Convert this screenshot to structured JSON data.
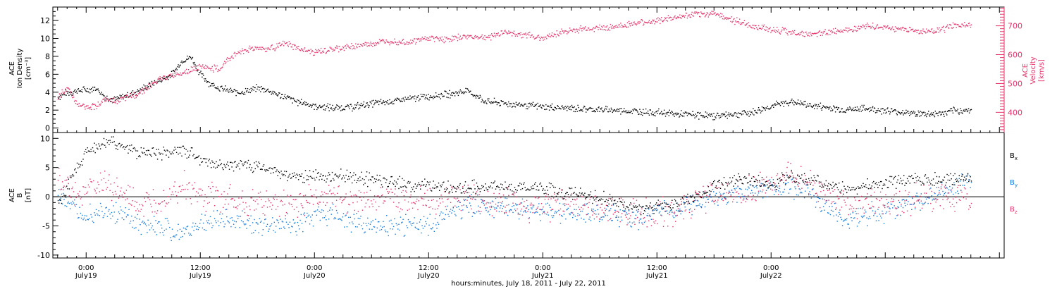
{
  "chart_data": [
    {
      "type": "scatter",
      "title": "",
      "ylabel_left": [
        "ACE",
        "Ion Density",
        "[cm⁻³]"
      ],
      "ylabel_right": [
        "ACE",
        "Velocity",
        "[km/s]"
      ],
      "ylim_left": [
        -0.5,
        13.5
      ],
      "ylim_right": [
        330,
        765
      ],
      "yticks_left": [
        "0",
        "2",
        "4",
        "6",
        "8",
        "10",
        "12"
      ],
      "yticks_right": [
        "400",
        "500",
        "600",
        "700"
      ],
      "xlim_hours": [
        -3.5,
        96.5
      ],
      "series": [
        {
          "name": "Density",
          "color": "#000000",
          "axis": "left",
          "x": [
            -3,
            -2,
            -1,
            0,
            1,
            2,
            3,
            4,
            5,
            6,
            7,
            8,
            9,
            10,
            11,
            12,
            13,
            14,
            15,
            16,
            17,
            18,
            19,
            20,
            21,
            22,
            23,
            24,
            26,
            28,
            30,
            32,
            34,
            36,
            38,
            40,
            42,
            44,
            46,
            48,
            50,
            52,
            54,
            56,
            58,
            60,
            62,
            64,
            66,
            68,
            70,
            72,
            74,
            76,
            78,
            80,
            82,
            84,
            86,
            88,
            90,
            91,
            92,
            93
          ],
          "y": [
            3.5,
            4.0,
            4.2,
            4.3,
            4.5,
            3.5,
            3.2,
            3.6,
            4.0,
            4.5,
            5.0,
            5.5,
            6.0,
            7.5,
            8.0,
            6.0,
            5.0,
            4.5,
            4.2,
            4.0,
            4.2,
            4.5,
            4.3,
            3.8,
            3.5,
            3.0,
            2.8,
            2.5,
            2.3,
            2.4,
            2.8,
            3.0,
            3.3,
            3.6,
            3.8,
            4.2,
            3.0,
            2.8,
            2.6,
            2.4,
            2.3,
            2.2,
            2.1,
            2.0,
            1.9,
            1.8,
            1.6,
            1.5,
            1.4,
            1.6,
            1.8,
            2.5,
            3.0,
            2.6,
            2.3,
            2.1,
            2.2,
            2.0,
            1.8,
            1.6,
            1.7,
            1.9,
            2.0,
            2.1
          ]
        },
        {
          "name": "Velocity",
          "color": "#e8336a",
          "axis": "right",
          "x": [
            -3,
            -2,
            -1,
            0,
            1,
            2,
            3,
            4,
            5,
            6,
            7,
            8,
            9,
            10,
            11,
            12,
            13,
            14,
            15,
            16,
            17,
            18,
            19,
            20,
            21,
            22,
            23,
            24,
            26,
            28,
            30,
            32,
            34,
            36,
            38,
            40,
            42,
            44,
            46,
            48,
            50,
            52,
            54,
            56,
            58,
            60,
            62,
            64,
            66,
            68,
            70,
            72,
            74,
            76,
            78,
            80,
            82,
            84,
            86,
            88,
            90,
            91,
            92,
            93
          ],
          "y": [
            450,
            490,
            430,
            420,
            425,
            445,
            440,
            450,
            460,
            480,
            500,
            520,
            530,
            540,
            550,
            560,
            555,
            550,
            590,
            610,
            620,
            625,
            620,
            630,
            640,
            625,
            615,
            610,
            620,
            630,
            640,
            650,
            645,
            660,
            655,
            665,
            660,
            680,
            670,
            660,
            680,
            690,
            695,
            700,
            710,
            720,
            730,
            740,
            745,
            720,
            700,
            690,
            680,
            670,
            680,
            690,
            700,
            695,
            690,
            680,
            690,
            700,
            705,
            700
          ]
        }
      ]
    },
    {
      "type": "scatter",
      "title": "",
      "ylabel": [
        "ACE",
        "B",
        "[nT]"
      ],
      "ylim": [
        -10.5,
        11
      ],
      "yticks": [
        "-10",
        "-5",
        "0",
        "5",
        "10"
      ],
      "xlim_hours": [
        -3.5,
        96.5
      ],
      "legend_location": "right",
      "legend": [
        "B",
        "B",
        "B"
      ],
      "legend_subscripts": [
        "x",
        "y",
        "z"
      ],
      "series": [
        {
          "name": "Bx",
          "color": "#000000",
          "x": [
            -3,
            -1,
            0,
            2,
            4,
            6,
            8,
            10,
            12,
            14,
            16,
            18,
            20,
            22,
            24,
            26,
            28,
            30,
            32,
            34,
            36,
            38,
            40,
            42,
            44,
            46,
            48,
            50,
            52,
            54,
            56,
            58,
            60,
            62,
            64,
            66,
            68,
            70,
            72,
            74,
            76,
            78,
            80,
            82,
            84,
            86,
            88,
            90,
            92,
            93
          ],
          "y": [
            -1,
            5,
            8,
            9.5,
            8.5,
            7.5,
            7.5,
            8,
            6.5,
            5.5,
            5.5,
            5,
            4.5,
            3.5,
            3.5,
            3.5,
            3.5,
            3,
            2.5,
            2,
            2,
            1.5,
            1.5,
            2,
            2,
            1.5,
            1.5,
            1,
            0.5,
            0,
            -1,
            -2,
            -1.5,
            -1.5,
            0,
            2,
            3,
            3,
            2,
            3.5,
            3,
            2,
            1.5,
            2,
            2.5,
            3,
            3,
            3,
            3,
            3
          ]
        },
        {
          "name": "By",
          "color": "#0f7ae0",
          "x": [
            -3,
            -1,
            0,
            2,
            4,
            6,
            8,
            10,
            12,
            14,
            16,
            18,
            20,
            22,
            24,
            26,
            28,
            30,
            32,
            34,
            36,
            38,
            40,
            42,
            44,
            46,
            48,
            50,
            52,
            54,
            56,
            58,
            60,
            62,
            64,
            66,
            68,
            70,
            72,
            74,
            76,
            78,
            80,
            82,
            84,
            86,
            88,
            90,
            92,
            93
          ],
          "y": [
            1,
            -3,
            -3,
            -2,
            -3.5,
            -5,
            -5,
            -6.5,
            -5,
            -4,
            -4,
            -5,
            -4.5,
            -4.5,
            -3,
            -3,
            -4,
            -5,
            -5,
            -4.5,
            -5,
            -3,
            -1,
            -1.5,
            -2,
            -2,
            -2,
            -2.5,
            -2,
            -3,
            -3,
            -3.5,
            -2,
            -2,
            -1,
            0,
            0.5,
            1,
            2,
            2,
            1,
            -2,
            -4,
            -3,
            -2.5,
            -1,
            0,
            1,
            2,
            2.5
          ]
        },
        {
          "name": "Bz",
          "color": "#e8336a",
          "x": [
            -3,
            -1,
            0,
            2,
            4,
            6,
            8,
            10,
            12,
            14,
            16,
            18,
            20,
            22,
            24,
            26,
            28,
            30,
            32,
            34,
            36,
            38,
            40,
            42,
            44,
            46,
            48,
            50,
            52,
            54,
            56,
            58,
            60,
            62,
            64,
            66,
            68,
            70,
            72,
            74,
            76,
            78,
            80,
            82,
            84,
            86,
            88,
            90,
            92,
            93
          ],
          "y": [
            3,
            1,
            1,
            2.5,
            0,
            -2,
            0,
            2,
            0,
            0,
            -1,
            -1,
            -1,
            -1,
            0,
            0,
            0,
            -0.5,
            0,
            -0.5,
            -1,
            0,
            0,
            -1,
            -1,
            -2,
            -1.5,
            -1,
            -1,
            -2,
            -2,
            -3,
            -3,
            -2,
            -1,
            0.5,
            1,
            1,
            3,
            3.5,
            2,
            0,
            -1,
            -1,
            -1,
            -0.5,
            0,
            0,
            0,
            -0.5
          ]
        }
      ]
    }
  ],
  "x_axis": {
    "ticks": [
      {
        "time": "0:00",
        "date": "July19"
      },
      {
        "time": "12:00",
        "date": "July19"
      },
      {
        "time": "0:00",
        "date": "July20"
      },
      {
        "time": "12:00",
        "date": "July20"
      },
      {
        "time": "0:00",
        "date": "July21"
      },
      {
        "time": "12:00",
        "date": "July21"
      },
      {
        "time": "0:00",
        "date": "July22"
      }
    ],
    "tick_hours": [
      0,
      12,
      24,
      36,
      48,
      60,
      72
    ],
    "label": "hours:minutes, July 18, 2011 - July 22, 2011"
  },
  "colors": {
    "black": "#000000",
    "pink": "#e8336a",
    "blue": "#0f7ae0"
  }
}
